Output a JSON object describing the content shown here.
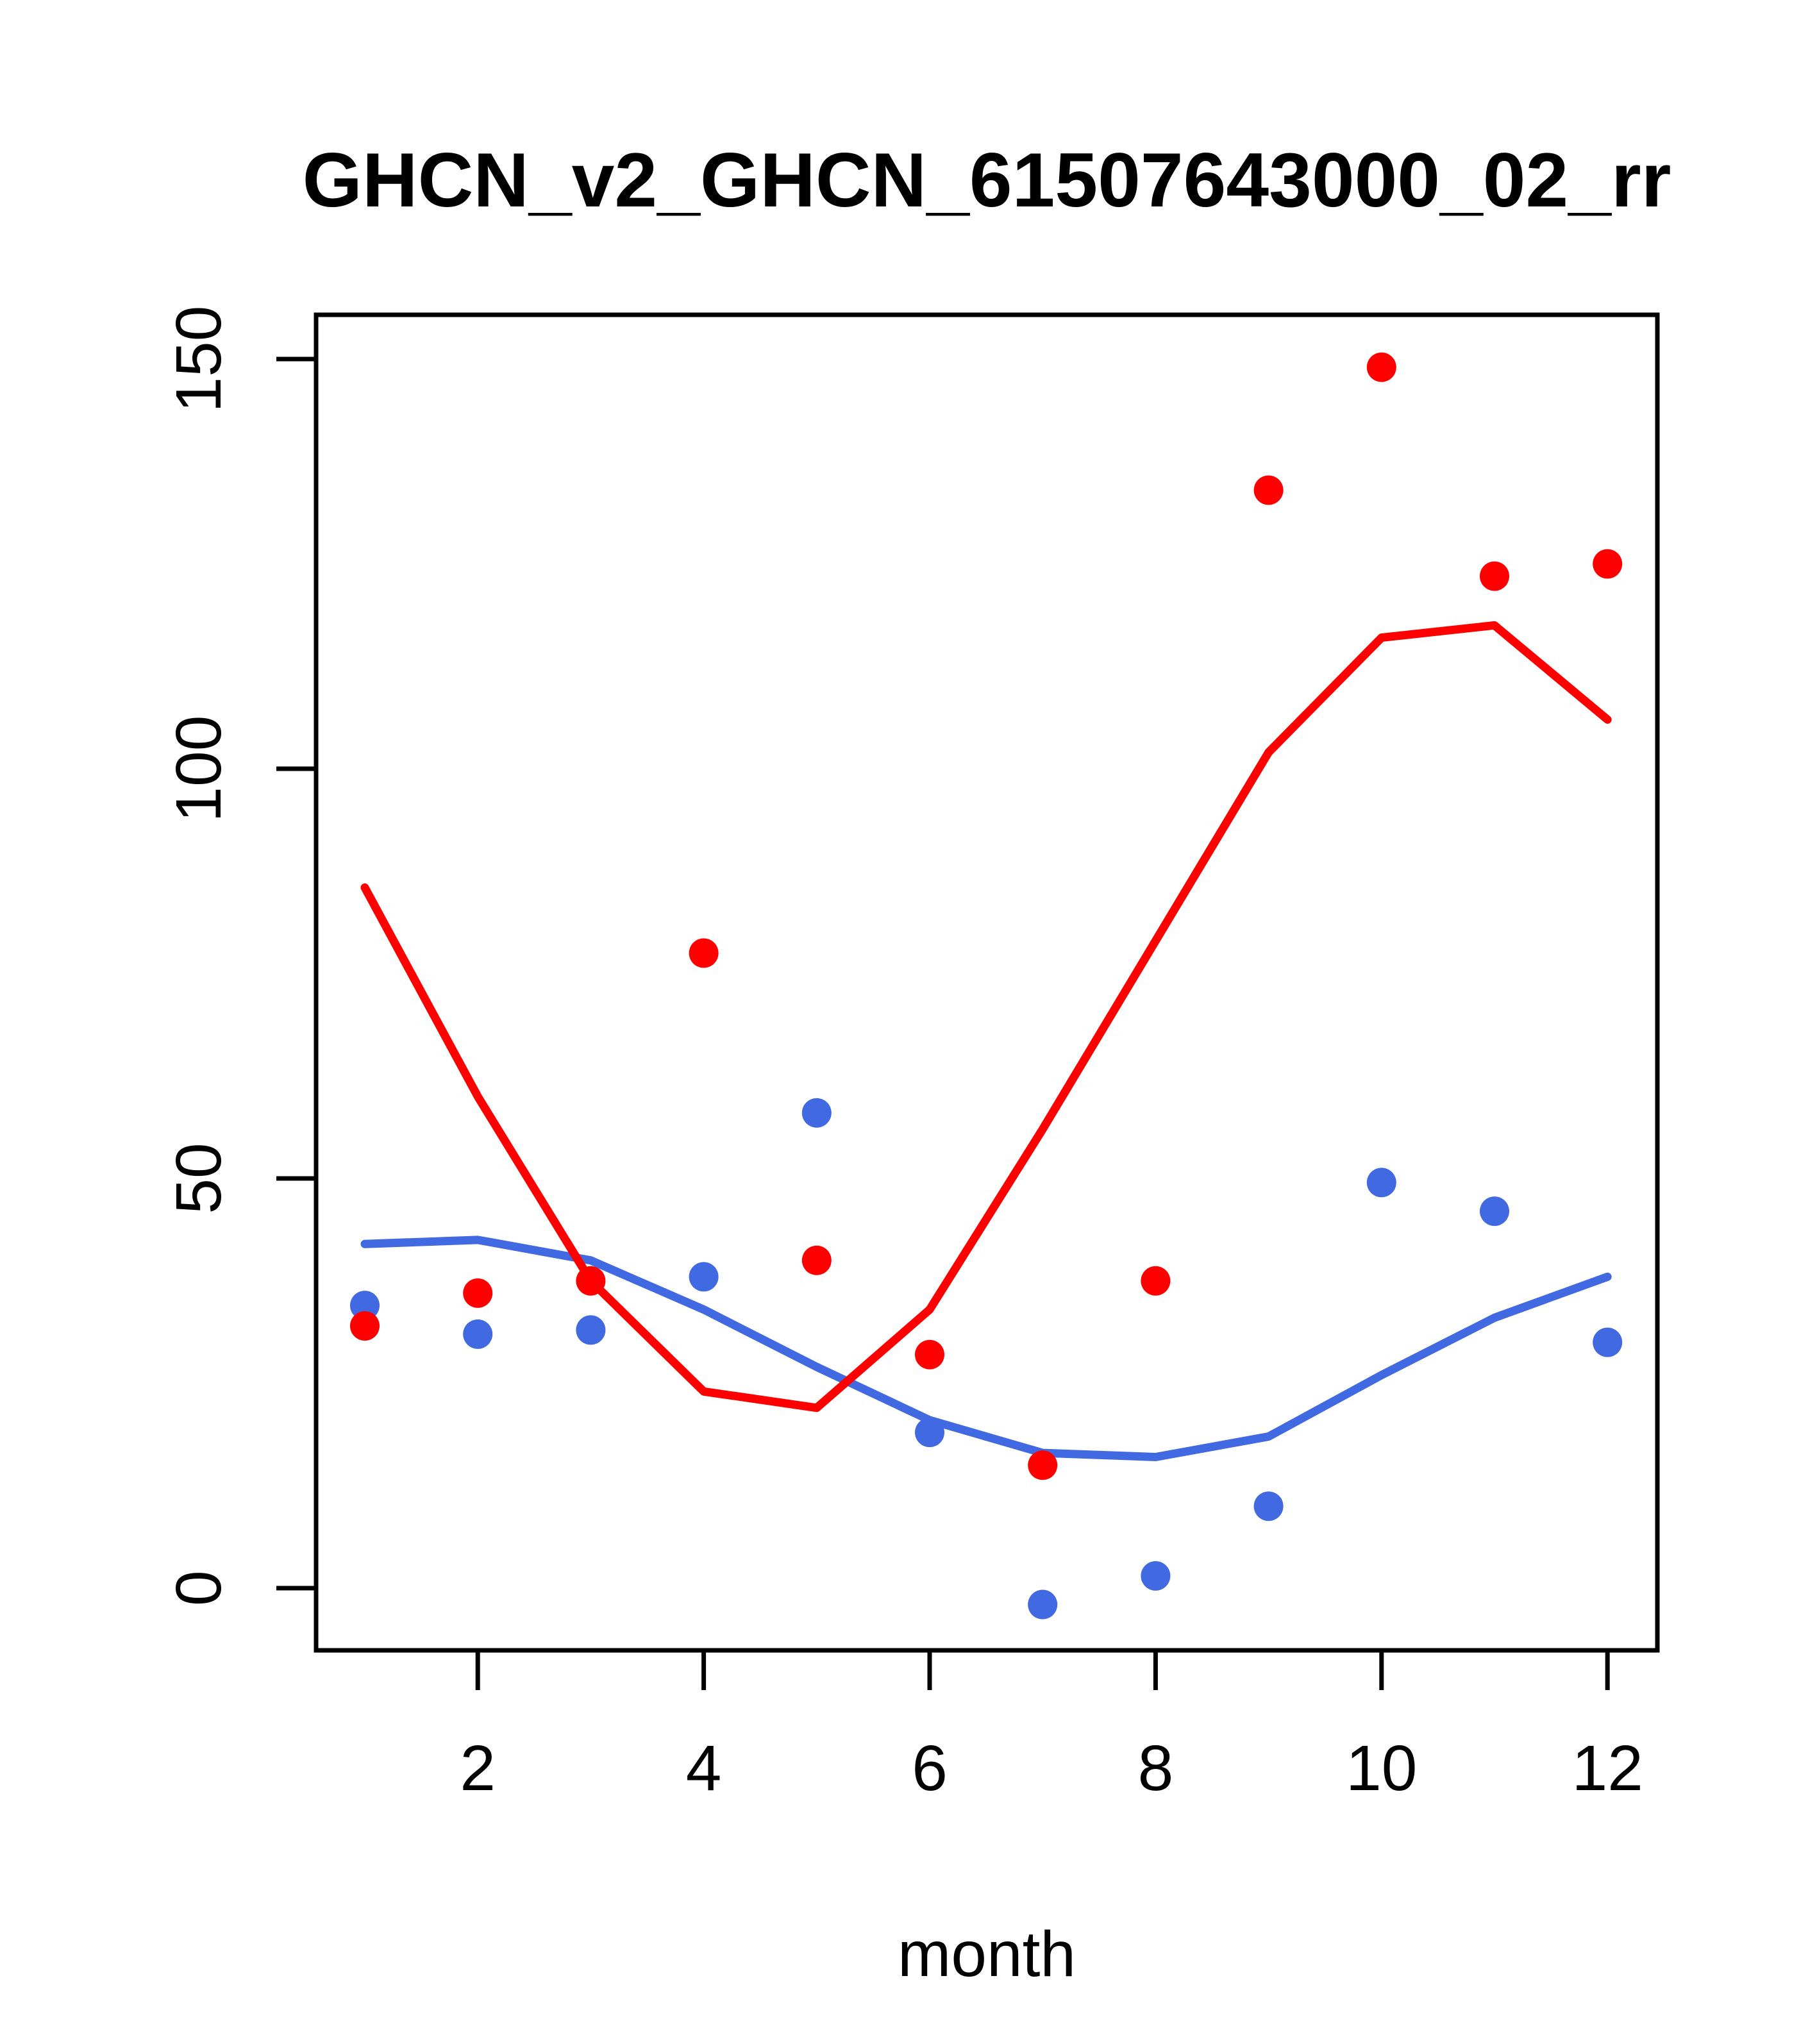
{
  "chart_data": {
    "type": "scatter",
    "title": "GHCN_v2_GHCN_61507643000_02_rr",
    "xlabel": "month",
    "ylabel": "",
    "x": [
      1,
      2,
      3,
      4,
      5,
      6,
      7,
      8,
      9,
      10,
      11,
      12
    ],
    "xticks": [
      2,
      4,
      6,
      8,
      10,
      12
    ],
    "yticks": [
      0,
      50,
      100,
      150
    ],
    "xlim": [
      0.56,
      12.44
    ],
    "ylim": [
      -7.6,
      155.4
    ],
    "grid": false,
    "legend": "none",
    "colors": {
      "red": "#FF0000",
      "blue": "#4169E1",
      "frame": "#000000"
    },
    "series": [
      {
        "name": "blue-line",
        "kind": "line",
        "color": "#4169E1",
        "values": [
          42,
          42.5,
          40,
          34,
          27,
          20.5,
          16.5,
          16,
          18.5,
          26,
          33,
          38
        ]
      },
      {
        "name": "red-line",
        "kind": "line",
        "color": "#FF0000",
        "values": [
          85.5,
          60,
          37.5,
          24,
          22,
          34,
          56,
          79,
          102,
          116,
          117.5,
          106
        ]
      },
      {
        "name": "blue-points",
        "kind": "points",
        "color": "#4169E1",
        "values": [
          34.5,
          31,
          31.5,
          38,
          58,
          19,
          -2,
          1.5,
          10,
          49.5,
          46,
          30
        ]
      },
      {
        "name": "red-points",
        "kind": "points",
        "color": "#FF0000",
        "values": [
          32,
          36,
          37.5,
          77.5,
          40,
          28.5,
          15,
          37.5,
          134,
          149,
          123.5,
          125
        ]
      }
    ]
  }
}
